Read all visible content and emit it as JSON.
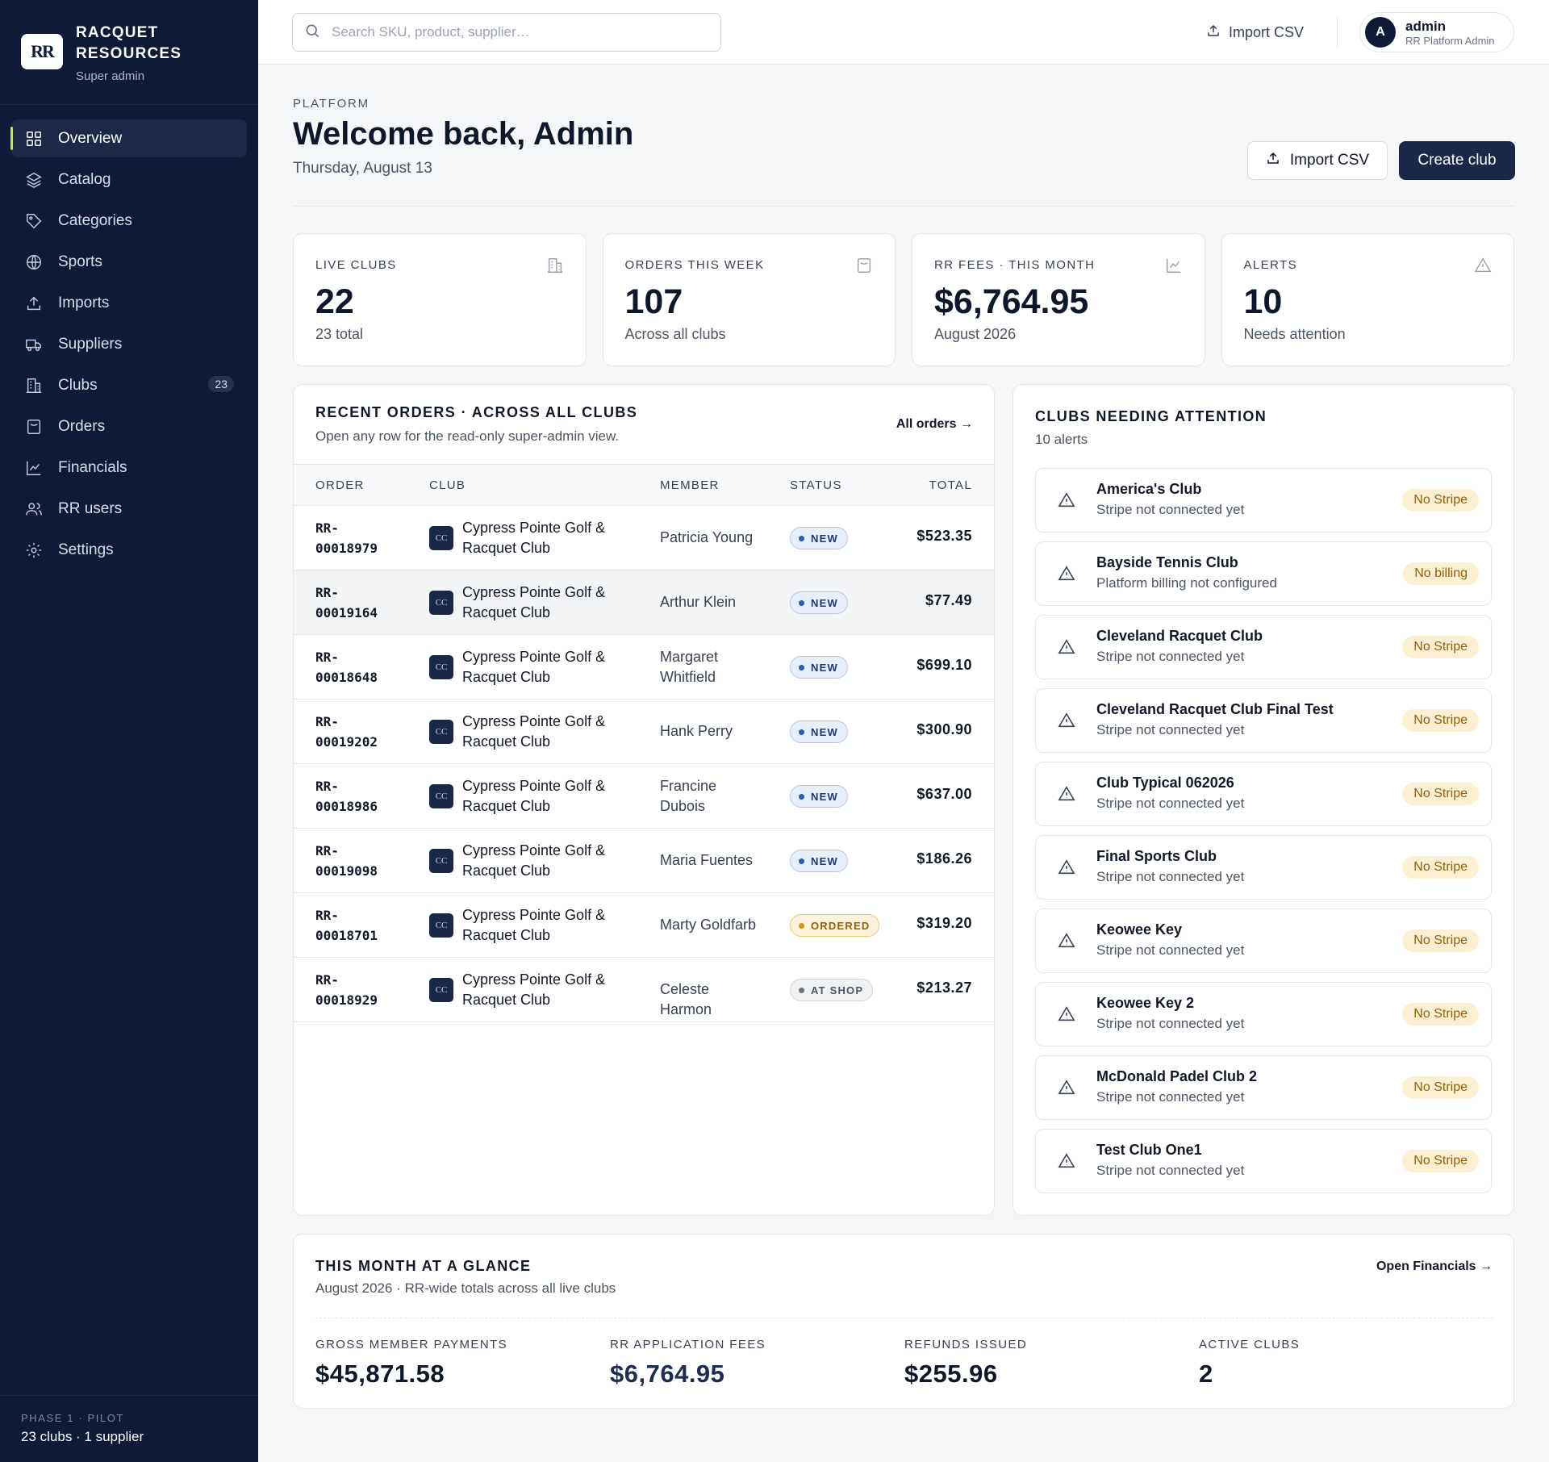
{
  "brand": {
    "logo": "RR",
    "name_line1": "RACQUET",
    "name_line2": "RESOURCES",
    "role": "Super admin"
  },
  "sidebar": {
    "items": [
      {
        "label": "Overview",
        "icon": "grid-icon",
        "active": true
      },
      {
        "label": "Catalog",
        "icon": "layers-icon"
      },
      {
        "label": "Categories",
        "icon": "tag-icon"
      },
      {
        "label": "Sports",
        "icon": "globe-icon"
      },
      {
        "label": "Imports",
        "icon": "upload-icon"
      },
      {
        "label": "Suppliers",
        "icon": "truck-icon"
      },
      {
        "label": "Clubs",
        "icon": "building-icon",
        "badge": "23"
      },
      {
        "label": "Orders",
        "icon": "receipt-icon"
      },
      {
        "label": "Financials",
        "icon": "chart-icon"
      },
      {
        "label": "RR users",
        "icon": "users-icon"
      },
      {
        "label": "Settings",
        "icon": "gear-icon"
      }
    ],
    "footer": {
      "label": "PHASE 1 · PILOT",
      "value": "23 clubs · 1 supplier"
    }
  },
  "topbar": {
    "search_placeholder": "Search SKU, product, supplier…",
    "import_label": "Import CSV",
    "user": {
      "initial": "A",
      "name": "admin",
      "role": "RR Platform Admin"
    }
  },
  "header": {
    "eyebrow": "PLATFORM",
    "title": "Welcome back, Admin",
    "date": "Thursday, August 13",
    "import_label": "Import CSV",
    "create_label": "Create club"
  },
  "stats": [
    {
      "label": "LIVE CLUBS",
      "value": "22",
      "sub": "23 total",
      "icon": "building-icon"
    },
    {
      "label": "ORDERS THIS WEEK",
      "value": "107",
      "sub": "Across all clubs",
      "icon": "receipt-icon"
    },
    {
      "label": "RR FEES · THIS MONTH",
      "value": "$6,764.95",
      "sub": "August 2026",
      "icon": "chart-icon"
    },
    {
      "label": "ALERTS",
      "value": "10",
      "sub": "Needs attention",
      "icon": "warning-icon"
    }
  ],
  "orders": {
    "title": "RECENT ORDERS · ACROSS ALL CLUBS",
    "subtitle": "Open any row for the read-only super-admin view.",
    "link": "All orders →",
    "columns": [
      "ORDER",
      "CLUB",
      "MEMBER",
      "STATUS",
      "TOTAL"
    ],
    "rows": [
      {
        "order_l1": "RR-",
        "order_l2": "00018979",
        "club_initials": "CC",
        "club_l1": "Cypress Pointe Golf &",
        "club_l2": "Racquet Club",
        "member": "Patricia Young",
        "status": "NEW",
        "status_kind": "new",
        "total": "$523.35"
      },
      {
        "order_l1": "RR-",
        "order_l2": "00019164",
        "club_initials": "CC",
        "club_l1": "Cypress Pointe Golf &",
        "club_l2": "Racquet Club",
        "member": "Arthur Klein",
        "status": "NEW",
        "status_kind": "new",
        "total": "$77.49"
      },
      {
        "order_l1": "RR-",
        "order_l2": "00018648",
        "club_initials": "CC",
        "club_l1": "Cypress Pointe Golf &",
        "club_l2": "Racquet Club",
        "member": "Margaret Whitfield",
        "status": "NEW",
        "status_kind": "new",
        "total": "$699.10"
      },
      {
        "order_l1": "RR-",
        "order_l2": "00019202",
        "club_initials": "CC",
        "club_l1": "Cypress Pointe Golf &",
        "club_l2": "Racquet Club",
        "member": "Hank Perry",
        "status": "NEW",
        "status_kind": "new",
        "total": "$300.90"
      },
      {
        "order_l1": "RR-",
        "order_l2": "00018986",
        "club_initials": "CC",
        "club_l1": "Cypress Pointe Golf &",
        "club_l2": "Racquet Club",
        "member": "Francine Dubois",
        "status": "NEW",
        "status_kind": "new",
        "total": "$637.00"
      },
      {
        "order_l1": "RR-",
        "order_l2": "00019098",
        "club_initials": "CC",
        "club_l1": "Cypress Pointe Golf &",
        "club_l2": "Racquet Club",
        "member": "Maria Fuentes",
        "status": "NEW",
        "status_kind": "new",
        "total": "$186.26"
      },
      {
        "order_l1": "RR-",
        "order_l2": "00018701",
        "club_initials": "CC",
        "club_l1": "Cypress Pointe Golf &",
        "club_l2": "Racquet Club",
        "member": "Marty Goldfarb",
        "status": "ORDERED",
        "status_kind": "ordered",
        "total": "$319.20"
      },
      {
        "order_l1": "RR-",
        "order_l2": "00018929",
        "club_initials": "CC",
        "club_l1": "Cypress Pointe Golf &",
        "club_l2": "Racquet Club",
        "member": "Celeste Harmon",
        "status": "AT SHOP",
        "status_kind": "atshop",
        "total": "$213.27"
      }
    ]
  },
  "attention": {
    "title": "CLUBS NEEDING ATTENTION",
    "subtitle": "10 alerts",
    "alerts": [
      {
        "name": "America's Club",
        "desc": "Stripe not connected yet",
        "tag": "No Stripe"
      },
      {
        "name": "Bayside Tennis Club",
        "desc": "Platform billing not configured",
        "tag": "No billing"
      },
      {
        "name": "Cleveland Racquet Club",
        "desc": "Stripe not connected yet",
        "tag": "No Stripe"
      },
      {
        "name": "Cleveland Racquet Club Final Test",
        "desc": "Stripe not connected yet",
        "tag": "No Stripe"
      },
      {
        "name": "Club Typical 062026",
        "desc": "Stripe not connected yet",
        "tag": "No Stripe"
      },
      {
        "name": "Final Sports Club",
        "desc": "Stripe not connected yet",
        "tag": "No Stripe"
      },
      {
        "name": "Keowee Key",
        "desc": "Stripe not connected yet",
        "tag": "No Stripe"
      },
      {
        "name": "Keowee Key 2",
        "desc": "Stripe not connected yet",
        "tag": "No Stripe"
      },
      {
        "name": "McDonald Padel Club 2",
        "desc": "Stripe not connected yet",
        "tag": "No Stripe"
      },
      {
        "name": "Test Club One1",
        "desc": "Stripe not connected yet",
        "tag": "No Stripe"
      }
    ]
  },
  "glance": {
    "title": "THIS MONTH AT A GLANCE",
    "subtitle": "August 2026 · RR-wide totals across all live clubs",
    "link": "Open Financials →",
    "metrics": [
      {
        "label": "GROSS MEMBER PAYMENTS",
        "value": "$45,871.58"
      },
      {
        "label": "RR APPLICATION FEES",
        "value": "$6,764.95",
        "accent": true
      },
      {
        "label": "REFUNDS ISSUED",
        "value": "$255.96"
      },
      {
        "label": "ACTIVE CLUBS",
        "value": "2"
      }
    ]
  }
}
